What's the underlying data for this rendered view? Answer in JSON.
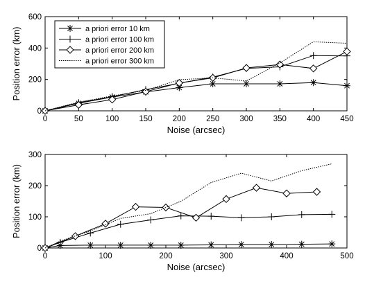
{
  "chart_data": [
    {
      "type": "line",
      "xlabel": "Noise (arcsec)",
      "ylabel": "Position error (km)",
      "xlim": [
        0,
        450
      ],
      "ylim": [
        0,
        600
      ],
      "xticks": [
        0,
        50,
        100,
        150,
        200,
        250,
        300,
        350,
        400,
        450
      ],
      "yticks": [
        0,
        200,
        400,
        600
      ],
      "grid": false,
      "legend_position": "top-left",
      "series": [
        {
          "name": "a priori error 10 km",
          "marker": "asterisk",
          "style": "solid",
          "x": [
            0,
            50,
            100,
            150,
            200,
            250,
            300,
            350,
            400,
            450
          ],
          "y": [
            0,
            48,
            88,
            120,
            148,
            172,
            172,
            172,
            180,
            160
          ]
        },
        {
          "name": "a priori error 100 km",
          "marker": "plus",
          "style": "solid",
          "x": [
            0,
            50,
            100,
            150,
            200,
            250,
            300,
            350,
            400,
            450
          ],
          "y": [
            0,
            52,
            90,
            135,
            175,
            215,
            270,
            280,
            352,
            350
          ]
        },
        {
          "name": "a priori error 200 km",
          "marker": "diamond",
          "style": "solid",
          "x": [
            0,
            50,
            100,
            150,
            200,
            250,
            300,
            350,
            400,
            450
          ],
          "y": [
            0,
            38,
            72,
            122,
            178,
            210,
            273,
            295,
            270,
            378
          ]
        },
        {
          "name": "a priori error 300 km",
          "marker": "none",
          "style": "dotted",
          "x": [
            0,
            50,
            100,
            150,
            200,
            250,
            300,
            350,
            400,
            450
          ],
          "y": [
            0,
            55,
            95,
            130,
            198,
            210,
            190,
            305,
            440,
            430
          ]
        }
      ]
    },
    {
      "type": "line",
      "xlabel": "Noise (arcsec)",
      "ylabel": "Position error (km)",
      "xlim": [
        0,
        500
      ],
      "ylim": [
        0,
        300
      ],
      "xticks": [
        0,
        100,
        200,
        300,
        400,
        500
      ],
      "yticks": [
        0,
        100,
        200,
        300
      ],
      "grid": false,
      "series": [
        {
          "marker": "asterisk",
          "style": "solid",
          "x": [
            0,
            25,
            75,
            125,
            175,
            225,
            275,
            325,
            375,
            425,
            475
          ],
          "y": [
            0,
            8,
            9,
            9,
            9,
            9,
            10,
            11,
            11,
            12,
            13
          ]
        },
        {
          "marker": "plus",
          "style": "solid",
          "x": [
            0,
            25,
            75,
            125,
            175,
            225,
            275,
            325,
            375,
            425,
            475
          ],
          "y": [
            0,
            18,
            48,
            76,
            90,
            103,
            102,
            97,
            100,
            107,
            108
          ]
        },
        {
          "marker": "diamond",
          "style": "solid",
          "x": [
            0,
            50,
            100,
            150,
            200,
            250,
            300,
            350,
            400,
            450
          ],
          "y": [
            0,
            38,
            78,
            132,
            130,
            97,
            157,
            193,
            175,
            180
          ]
        },
        {
          "marker": "none",
          "style": "dotted",
          "x": [
            0,
            25,
            75,
            125,
            175,
            225,
            275,
            325,
            375,
            425,
            475
          ],
          "y": [
            0,
            22,
            55,
            95,
            110,
            150,
            210,
            240,
            215,
            248,
            270
          ]
        }
      ]
    }
  ]
}
